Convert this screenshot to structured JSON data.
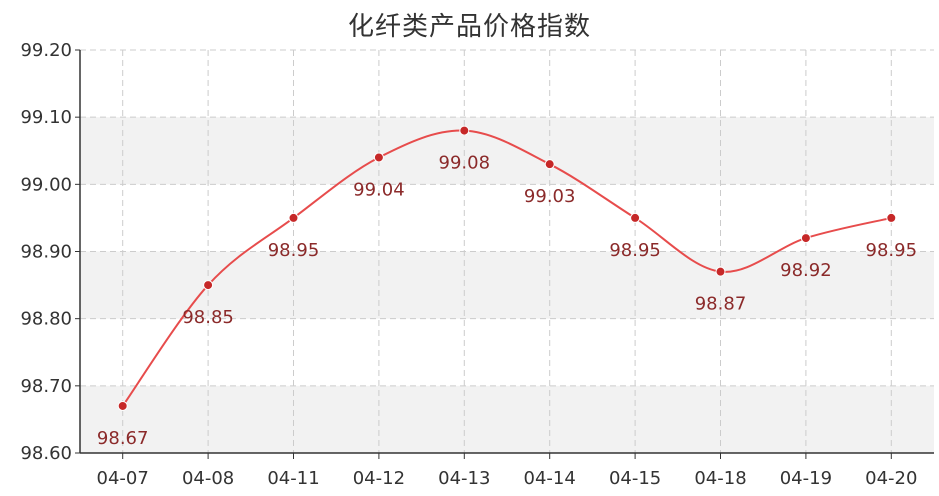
{
  "chart_data": {
    "type": "line",
    "title": "化纤类产品价格指数",
    "categories": [
      "04-07",
      "04-08",
      "04-11",
      "04-12",
      "04-13",
      "04-14",
      "04-15",
      "04-18",
      "04-19",
      "04-20"
    ],
    "series": [
      {
        "values": [
          98.67,
          98.85,
          98.95,
          99.04,
          99.08,
          99.03,
          98.95,
          98.87,
          98.92,
          98.95
        ],
        "labels": [
          "98.67",
          "98.85",
          "98.95",
          "99.04",
          "99.08",
          "99.03",
          "98.95",
          "98.87",
          "98.92",
          "98.95"
        ],
        "color": "#e74c4c"
      }
    ],
    "yticks": [
      "98.60",
      "98.70",
      "98.80",
      "98.90",
      "99.00",
      "99.10",
      "99.20"
    ],
    "ylim": [
      98.6,
      99.2
    ],
    "xlabel": "",
    "ylabel": "",
    "grid": true,
    "smooth": true,
    "colors": {
      "line": "#e74c4c",
      "marker": "#c62828",
      "data_label": "#8b2a2a",
      "band": "#f2f2f2",
      "grid": "#cccccc",
      "axis": "#333333"
    }
  }
}
